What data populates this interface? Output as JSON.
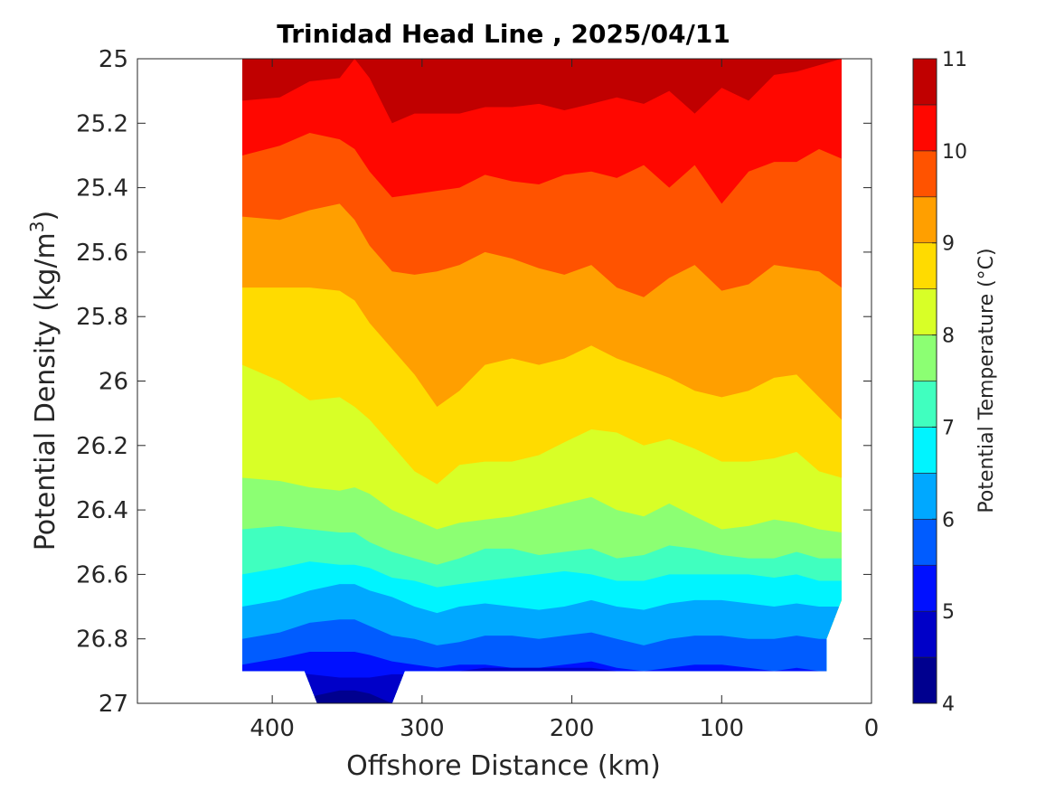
{
  "chart_data": {
    "type": "heatmap",
    "subtype": "filled-contour",
    "title": "Trinidad Head Line , 2025/04/11",
    "xlabel": "Offshore Distance (km)",
    "ylabel_main": "Potential Density (kg/m",
    "ylabel_sup": "3",
    "ylabel_end": ")",
    "xlim": [
      490,
      0
    ],
    "x_reversed": true,
    "xticks": [
      400,
      300,
      200,
      100,
      0
    ],
    "xtick_labels": [
      "400",
      "300",
      "200",
      "100",
      "0"
    ],
    "ylim": [
      25,
      27
    ],
    "y_reversed": true,
    "yticks": [
      25,
      25.2,
      25.4,
      25.6,
      25.8,
      26,
      26.2,
      26.4,
      26.6,
      26.8,
      27
    ],
    "ytick_labels": [
      "25",
      "25.2",
      "25.4",
      "25.6",
      "25.8",
      "26",
      "26.2",
      "26.4",
      "26.6",
      "26.8",
      "27"
    ],
    "colorbar": {
      "label": "Potential Temperature (°C)",
      "range": [
        4,
        11
      ],
      "ticks": [
        4,
        5,
        6,
        7,
        8,
        9,
        10,
        11
      ],
      "tick_labels": [
        "4",
        "5",
        "6",
        "7",
        "8",
        "9",
        "10",
        "11"
      ],
      "levels": [
        4,
        4.5,
        5,
        5.5,
        6,
        6.5,
        7,
        7.5,
        8,
        8.5,
        9,
        9.5,
        10,
        10.5,
        11
      ],
      "colors": [
        "#00008f",
        "#0000c8",
        "#0010ff",
        "#005cff",
        "#00a8ff",
        "#00f4ff",
        "#40ffbf",
        "#8cff73",
        "#d8ff27",
        "#ffdb00",
        "#ff9f00",
        "#ff5300",
        "#ff0700",
        "#c00000"
      ]
    },
    "data_extent": {
      "x_from": 420,
      "x_to": 20,
      "density_max_typical": 26.9,
      "density_max_deep": 27.0,
      "deep_x_range": [
        370,
        320
      ]
    },
    "contour_isopycnal_depths": {
      "x": [
        420,
        395,
        375,
        355,
        345,
        335,
        320,
        305,
        290,
        275,
        258,
        240,
        222,
        205,
        187,
        170,
        152,
        135,
        118,
        100,
        82,
        65,
        50,
        35,
        20
      ],
      "levels": [
        {
          "t": 10.5,
          "y": [
            25.13,
            25.12,
            25.07,
            25.06,
            25.0,
            25.06,
            25.2,
            25.17,
            25.17,
            25.17,
            25.15,
            25.15,
            25.14,
            25.16,
            25.14,
            25.12,
            25.14,
            25.1,
            25.17,
            25.09,
            25.13,
            25.05,
            25.04,
            25.02,
            25.0
          ]
        },
        {
          "t": 10.0,
          "y": [
            25.3,
            25.27,
            25.23,
            25.25,
            25.28,
            25.35,
            25.43,
            25.42,
            25.41,
            25.4,
            25.36,
            25.38,
            25.39,
            25.36,
            25.35,
            25.37,
            25.33,
            25.4,
            25.33,
            25.45,
            25.35,
            25.32,
            25.32,
            25.28,
            25.31
          ]
        },
        {
          "t": 9.5,
          "y": [
            25.49,
            25.5,
            25.47,
            25.45,
            25.5,
            25.58,
            25.66,
            25.67,
            25.66,
            25.64,
            25.6,
            25.62,
            25.65,
            25.67,
            25.64,
            25.71,
            25.74,
            25.68,
            25.64,
            25.72,
            25.7,
            25.64,
            25.65,
            25.66,
            25.71
          ]
        },
        {
          "t": 9.0,
          "y": [
            25.71,
            25.71,
            25.71,
            25.72,
            25.75,
            25.82,
            25.9,
            25.98,
            26.08,
            26.03,
            25.95,
            25.93,
            25.95,
            25.93,
            25.89,
            25.93,
            25.96,
            25.99,
            26.03,
            26.05,
            26.03,
            25.99,
            25.98,
            26.05,
            26.12
          ]
        },
        {
          "t": 8.5,
          "y": [
            25.95,
            26.0,
            26.06,
            26.05,
            26.08,
            26.12,
            26.2,
            26.28,
            26.32,
            26.26,
            26.25,
            26.25,
            26.23,
            26.19,
            26.15,
            26.16,
            26.2,
            26.18,
            26.21,
            26.25,
            26.25,
            26.24,
            26.22,
            26.28,
            26.3
          ]
        },
        {
          "t": 8.0,
          "y": [
            26.3,
            26.31,
            26.33,
            26.34,
            26.33,
            26.35,
            26.4,
            26.43,
            26.46,
            26.44,
            26.43,
            26.42,
            26.4,
            26.38,
            26.36,
            26.4,
            26.42,
            26.38,
            26.42,
            26.46,
            26.45,
            26.43,
            26.44,
            26.46,
            26.47
          ]
        },
        {
          "t": 7.5,
          "y": [
            26.46,
            26.45,
            26.46,
            26.47,
            26.47,
            26.5,
            26.53,
            26.55,
            26.57,
            26.55,
            26.52,
            26.52,
            26.54,
            26.53,
            26.52,
            26.55,
            26.54,
            26.51,
            26.52,
            26.54,
            26.55,
            26.55,
            26.53,
            26.55,
            26.55
          ]
        },
        {
          "t": 7.0,
          "y": [
            26.6,
            26.58,
            26.56,
            26.57,
            26.57,
            26.58,
            26.61,
            26.62,
            26.64,
            26.63,
            26.62,
            26.61,
            26.6,
            26.59,
            26.6,
            26.62,
            26.62,
            26.6,
            26.6,
            26.6,
            26.6,
            26.61,
            26.6,
            26.62,
            26.62
          ]
        },
        {
          "t": 6.5,
          "y": [
            26.7,
            26.68,
            26.65,
            26.63,
            26.63,
            26.65,
            26.67,
            26.7,
            26.72,
            26.7,
            26.69,
            26.7,
            26.71,
            26.7,
            26.68,
            26.7,
            26.71,
            26.69,
            26.68,
            26.68,
            26.69,
            26.7,
            26.69,
            26.7,
            26.7
          ]
        },
        {
          "t": 6.0,
          "y": [
            26.8,
            26.78,
            26.75,
            26.74,
            26.74,
            26.76,
            26.79,
            26.8,
            26.82,
            26.81,
            26.79,
            26.79,
            26.8,
            26.79,
            26.78,
            26.8,
            26.82,
            26.8,
            26.79,
            26.79,
            26.8,
            26.8,
            26.79,
            26.8,
            26.8
          ]
        },
        {
          "t": 5.5,
          "y": [
            26.88,
            26.86,
            26.84,
            26.84,
            26.84,
            26.85,
            26.87,
            26.88,
            26.89,
            26.88,
            26.88,
            26.89,
            26.89,
            26.88,
            26.87,
            26.89,
            26.9,
            26.89,
            26.88,
            26.88,
            26.89,
            26.9,
            26.89,
            26.9,
            26.9
          ]
        },
        {
          "t": 5.0,
          "y": [
            26.9,
            26.9,
            26.91,
            26.92,
            26.92,
            26.92,
            26.91,
            26.91,
            26.9,
            26.9,
            26.89,
            26.89,
            26.89,
            26.89,
            26.89,
            26.9,
            26.9,
            26.9,
            26.9,
            26.9,
            26.9,
            26.9,
            26.9,
            26.9,
            26.9
          ]
        },
        {
          "t": 4.5,
          "y": [
            27.0,
            27.0,
            26.98,
            26.96,
            26.96,
            26.97,
            27.0,
            27.0,
            27.0,
            27.0,
            27.0,
            27.0,
            27.0,
            27.0,
            27.0,
            27.0,
            27.0,
            27.0,
            27.0,
            27.0,
            27.0,
            27.0,
            27.0,
            27.0,
            27.0
          ]
        }
      ]
    }
  }
}
